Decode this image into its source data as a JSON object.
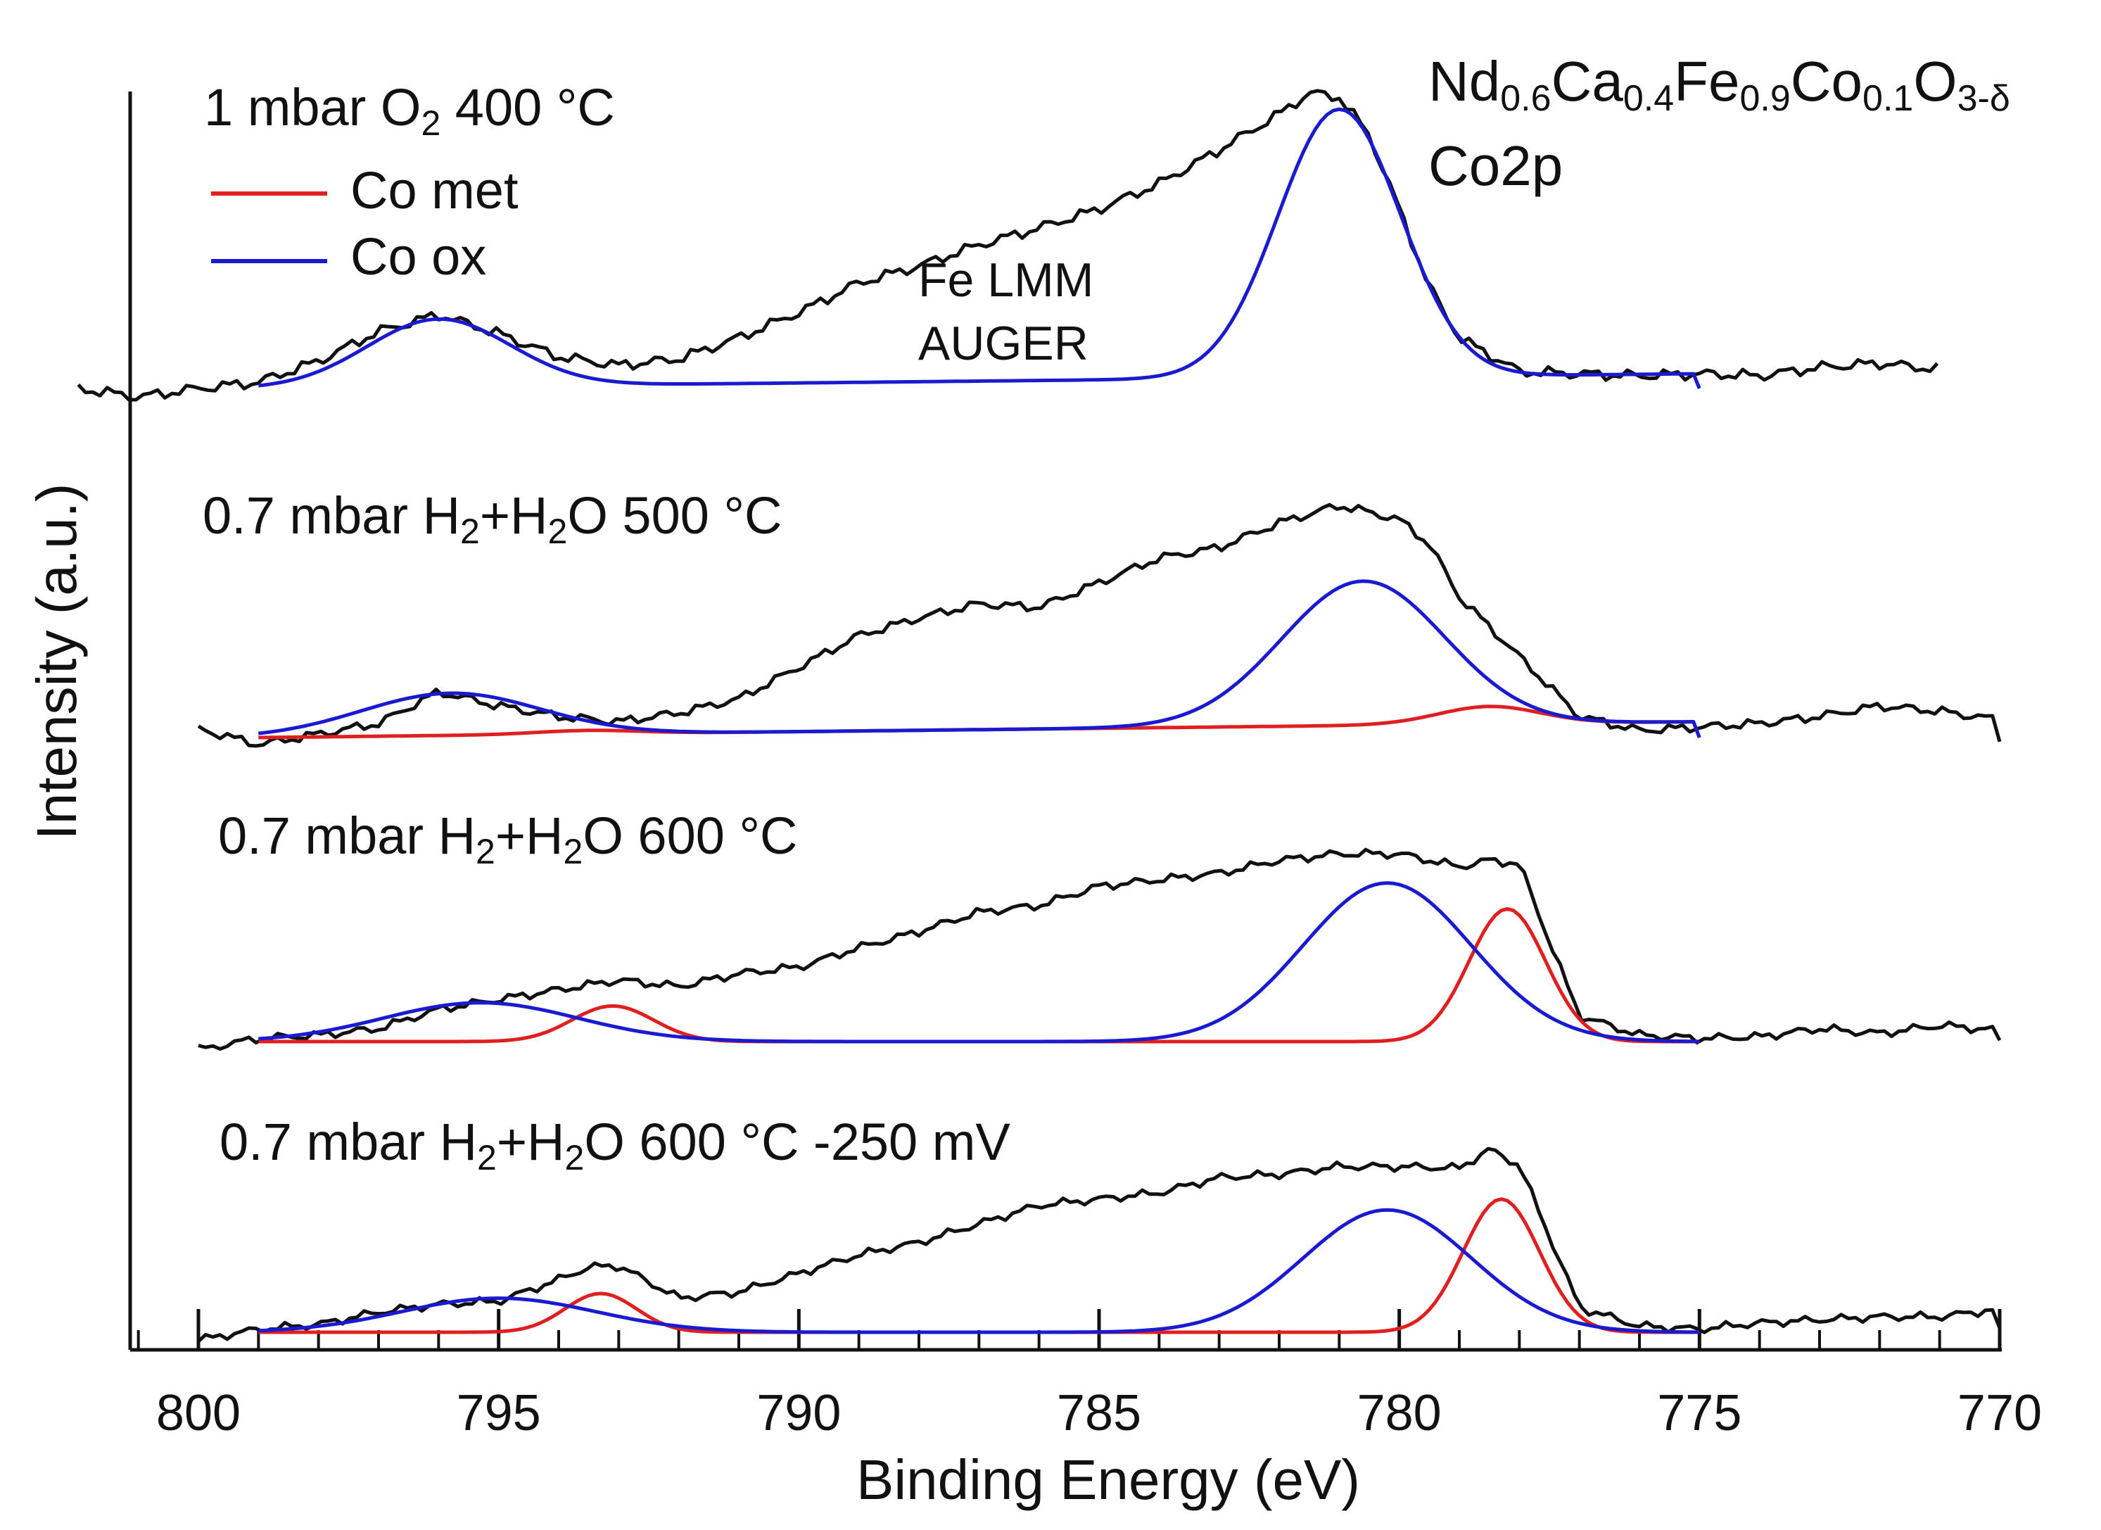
{
  "chart_data": {
    "type": "line",
    "xlabel": "Binding Energy (eV)",
    "ylabel": "Intensity (a.u.)",
    "xlim": [
      801,
      770
    ],
    "x_reversed": true,
    "xticks": [
      800,
      795,
      790,
      785,
      780,
      775,
      770
    ],
    "xtick_labels": [
      "800",
      "795",
      "790",
      "785",
      "780",
      "775",
      "770"
    ],
    "sample_label": {
      "formula_parts": [
        {
          "text": "Nd",
          "sub": "0.6"
        },
        {
          "text": "Ca",
          "sub": "0.4"
        },
        {
          "text": "Fe",
          "sub": "0.9"
        },
        {
          "text": "Co",
          "sub": "0.1"
        },
        {
          "text": "O",
          "sub": "3-δ"
        }
      ],
      "core_level": "Co2p"
    },
    "legend": [
      {
        "name": "Co met",
        "color": "#e02020"
      },
      {
        "name": "Co ox",
        "color": "#1a1ad0"
      }
    ],
    "annotation": {
      "line1": "Fe LMM",
      "line2": "AUGER"
    },
    "colors": {
      "measured": "#111111",
      "co_met": "#e02020",
      "co_ox": "#1a1ad0"
    },
    "panels": [
      {
        "title_parts": [
          {
            "text": "1 mbar O"
          },
          {
            "text": "2",
            "sub": true
          },
          {
            "text": " 400 °C"
          }
        ],
        "baseline": {
          "x": [
            799,
            775
          ],
          "y": [
            0.0,
            0.07
          ]
        },
        "measured": {
          "x": [
            802,
            801,
            800,
            799,
            798,
            797,
            796,
            795,
            794,
            793,
            792,
            791,
            790,
            789,
            788,
            787,
            786,
            785,
            784,
            783,
            782,
            781.5,
            781,
            780.5,
            780,
            779.5,
            779,
            778,
            777,
            776,
            775,
            774,
            773,
            772,
            771
          ],
          "y": [
            0.0,
            -0.04,
            0.0,
            0.03,
            0.13,
            0.27,
            0.35,
            0.26,
            0.15,
            0.11,
            0.14,
            0.24,
            0.36,
            0.5,
            0.58,
            0.68,
            0.76,
            0.85,
            0.97,
            1.13,
            1.3,
            1.4,
            1.38,
            1.2,
            0.85,
            0.48,
            0.24,
            0.08,
            0.07,
            0.06,
            0.07,
            0.06,
            0.1,
            0.12,
            0.09
          ]
        },
        "co_met": [],
        "co_ox": [
          {
            "center": 796.0,
            "height": 0.32,
            "fwhm": 2.8
          },
          {
            "center": 781.0,
            "height": 1.27,
            "fwhm": 2.4
          }
        ]
      },
      {
        "title_parts": [
          {
            "text": "0.7 mbar H"
          },
          {
            "text": "2",
            "sub": true
          },
          {
            "text": "+H"
          },
          {
            "text": "2",
            "sub": true
          },
          {
            "text": "O 500 °C"
          }
        ],
        "baseline": {
          "x": [
            799,
            775
          ],
          "y": [
            0.0,
            0.09
          ]
        },
        "measured": {
          "x": [
            800,
            799,
            798,
            797,
            796,
            795,
            794,
            793,
            792,
            791,
            790,
            789,
            788,
            787,
            786,
            785,
            784,
            783,
            782,
            781,
            780,
            779.5,
            779,
            778,
            777,
            776,
            775,
            774,
            773,
            772,
            771,
            770
          ],
          "y": [
            0.05,
            -0.04,
            0.02,
            0.08,
            0.26,
            0.18,
            0.12,
            0.09,
            0.14,
            0.22,
            0.4,
            0.58,
            0.68,
            0.76,
            0.74,
            0.88,
            1.02,
            1.08,
            1.22,
            1.32,
            1.24,
            1.1,
            0.8,
            0.46,
            0.12,
            0.04,
            0.06,
            0.08,
            0.12,
            0.18,
            0.15,
            0.1
          ]
        },
        "co_met": [
          {
            "center": 793.5,
            "height": 0.02,
            "fwhm": 2.0
          },
          {
            "center": 778.5,
            "height": 0.1,
            "fwhm": 2.0
          }
        ],
        "co_ox": [
          {
            "center": 795.8,
            "height": 0.24,
            "fwhm": 3.5
          },
          {
            "center": 780.6,
            "height": 0.82,
            "fwhm": 3.2
          }
        ]
      },
      {
        "title_parts": [
          {
            "text": "0.7 mbar H"
          },
          {
            "text": "2",
            "sub": true
          },
          {
            "text": "+H"
          },
          {
            "text": "2",
            "sub": true
          },
          {
            "text": "O 600 °C"
          }
        ],
        "baseline": {
          "x": [
            799,
            775
          ],
          "y": [
            0.0,
            0.0
          ]
        },
        "measured": {
          "x": [
            800,
            799,
            798,
            797,
            796,
            795,
            794,
            793,
            792,
            791,
            790,
            789,
            788,
            787,
            786,
            785,
            784,
            783,
            782,
            781,
            780,
            779,
            778.5,
            778,
            777.5,
            777,
            776,
            775,
            774,
            773,
            772,
            771,
            770
          ],
          "y": [
            -0.05,
            0.02,
            0.04,
            0.08,
            0.2,
            0.26,
            0.32,
            0.38,
            0.34,
            0.42,
            0.46,
            0.58,
            0.68,
            0.8,
            0.84,
            0.96,
            1.0,
            1.04,
            1.12,
            1.16,
            1.16,
            1.08,
            1.12,
            1.1,
            0.62,
            0.16,
            0.04,
            0.02,
            0.03,
            0.08,
            0.05,
            0.1,
            0.07
          ]
        },
        "co_met": [
          {
            "center": 793.1,
            "height": 0.22,
            "fwhm": 1.6
          },
          {
            "center": 778.2,
            "height": 0.82,
            "fwhm": 1.5
          }
        ],
        "co_ox": [
          {
            "center": 795.3,
            "height": 0.24,
            "fwhm": 3.8
          },
          {
            "center": 780.2,
            "height": 0.98,
            "fwhm": 3.3
          }
        ]
      },
      {
        "title_parts": [
          {
            "text": "0.7 mbar H"
          },
          {
            "text": "2",
            "sub": true
          },
          {
            "text": "+H"
          },
          {
            "text": "2",
            "sub": true
          },
          {
            "text": "O 600 °C -250 mV"
          }
        ],
        "baseline": {
          "x": [
            799,
            775
          ],
          "y": [
            0.0,
            0.0
          ]
        },
        "measured": {
          "x": [
            800,
            799,
            798,
            797,
            796,
            795,
            794,
            793.5,
            793,
            792,
            791,
            790,
            789,
            788,
            787,
            786,
            785,
            784,
            783,
            782,
            781,
            780,
            779,
            778.5,
            778,
            777.5,
            777,
            776,
            775,
            774,
            773,
            772,
            771,
            770
          ],
          "y": [
            -0.05,
            0.02,
            0.05,
            0.13,
            0.18,
            0.2,
            0.34,
            0.42,
            0.43,
            0.22,
            0.26,
            0.38,
            0.5,
            0.58,
            0.7,
            0.82,
            0.86,
            0.9,
            1.0,
            1.02,
            1.07,
            1.07,
            1.06,
            1.18,
            1.08,
            0.62,
            0.16,
            0.04,
            0.02,
            0.06,
            0.08,
            0.1,
            0.1,
            0.15
          ]
        },
        "co_met": [
          {
            "center": 793.3,
            "height": 0.25,
            "fwhm": 1.4
          },
          {
            "center": 778.3,
            "height": 0.86,
            "fwhm": 1.5
          }
        ],
        "co_ox": [
          {
            "center": 795.0,
            "height": 0.22,
            "fwhm": 3.8
          },
          {
            "center": 780.2,
            "height": 0.79,
            "fwhm": 3.3
          }
        ]
      }
    ]
  }
}
